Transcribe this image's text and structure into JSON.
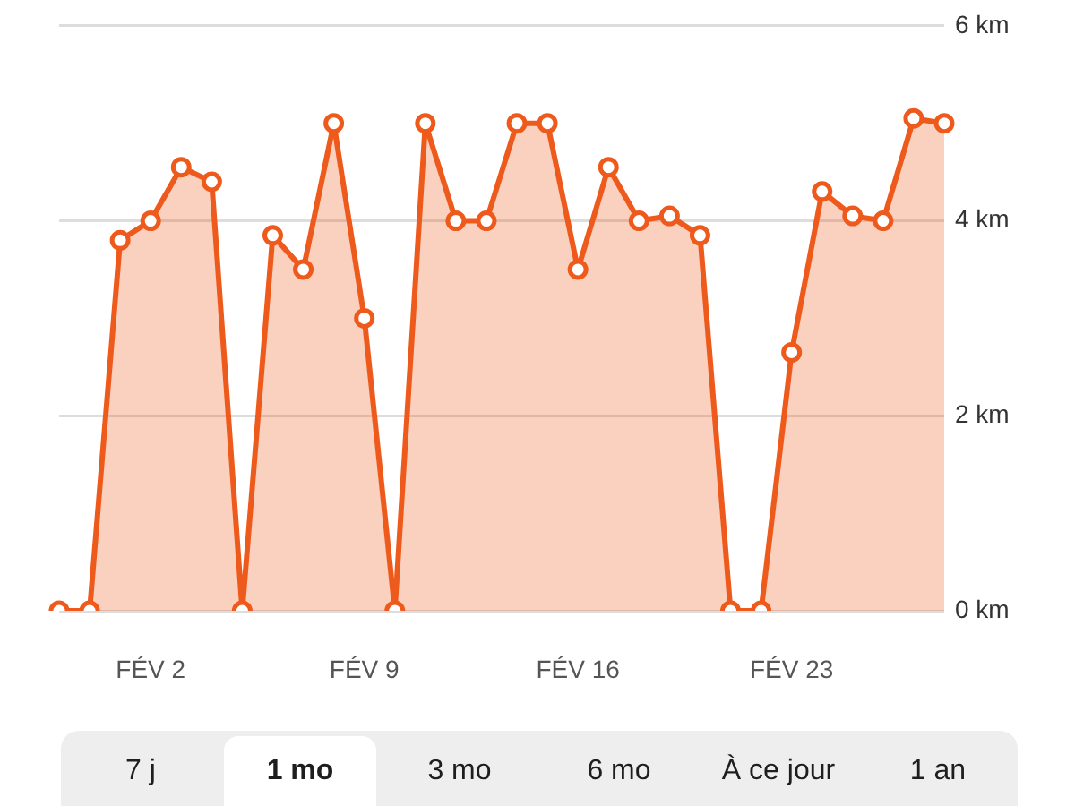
{
  "chart_data": {
    "type": "area",
    "categories": [
      null,
      null,
      null,
      "FÉV 2",
      null,
      null,
      null,
      null,
      null,
      null,
      "FÉV 9",
      null,
      null,
      null,
      null,
      null,
      null,
      "FÉV 16",
      null,
      null,
      null,
      null,
      null,
      null,
      "FÉV 23",
      null,
      null,
      null,
      null,
      null
    ],
    "values": [
      0,
      0,
      3.8,
      4.0,
      4.55,
      4.4,
      0,
      3.85,
      3.5,
      5.0,
      3.0,
      0,
      5.0,
      4.0,
      4.0,
      5.0,
      5.0,
      3.5,
      4.55,
      4.0,
      4.05,
      3.85,
      0,
      0,
      2.65,
      4.3,
      4.05,
      4.0,
      5.05,
      5.0
    ],
    "color": "#ee5a1c",
    "ylim": [
      0,
      6
    ],
    "yticks": [
      {
        "value": 0,
        "label": "0 km"
      },
      {
        "value": 2,
        "label": "2 km"
      },
      {
        "value": 4,
        "label": "4 km"
      },
      {
        "value": 6,
        "label": "6 km"
      }
    ],
    "grid": "y",
    "legend": false,
    "marker": "circle",
    "line_style": "solid",
    "annotations": [
      "7 j",
      "1 mo",
      "3 mo",
      "6 mo",
      "À ce jour",
      "1 an"
    ]
  }
}
